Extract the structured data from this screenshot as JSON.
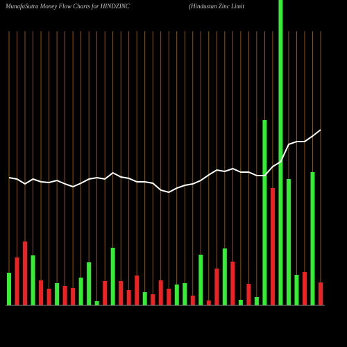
{
  "chart_data": {
    "type": "bar",
    "title": "MunafaSutra  Money Flow  Charts for HINDZINC",
    "subtitle": "(Hindustan  Zinc Limit",
    "ylim": [
      0,
      440
    ],
    "series": [
      {
        "name": "Money Flow",
        "type": "bar",
        "values": [
          47,
          69,
          92,
          72,
          36,
          24,
          32,
          28,
          25,
          40,
          62,
          6,
          35,
          83,
          35,
          22,
          43,
          19,
          16,
          36,
          24,
          30,
          32,
          14,
          73,
          7,
          53,
          82,
          63,
          8,
          31,
          12,
          267,
          169,
          440,
          182,
          44,
          48,
          192,
          33
        ],
        "colors": [
          "#33ee33",
          "#ee2222",
          "#ee2222",
          "#33ee33",
          "#ee2222",
          "#ee2222",
          "#33ee33",
          "#ee2222",
          "#ee2222",
          "#33ee33",
          "#33ee33",
          "#33ee33",
          "#ee2222",
          "#33ee33",
          "#ee2222",
          "#ee2222",
          "#ee2222",
          "#33ee33",
          "#ee2222",
          "#ee2222",
          "#ee2222",
          "#33ee33",
          "#33ee33",
          "#ee2222",
          "#33ee33",
          "#ee2222",
          "#ee2222",
          "#33ee33",
          "#ee2222",
          "#33ee33",
          "#ee2222",
          "#33ee33",
          "#33ee33",
          "#ee2222",
          "#33ee33",
          "#33ee33",
          "#33ee33",
          "#ee2222",
          "#33ee33",
          "#ee2222"
        ]
      },
      {
        "name": "Price",
        "type": "line",
        "color": "#ffffff",
        "values": [
          184,
          182,
          175,
          182,
          178,
          177,
          180,
          175,
          171,
          176,
          182,
          184,
          182,
          191,
          185,
          183,
          178,
          178,
          176,
          166,
          163,
          169,
          173,
          175,
          180,
          188,
          195,
          193,
          197,
          192,
          192,
          187,
          187,
          200,
          207,
          232,
          236,
          236,
          244,
          253
        ]
      }
    ]
  }
}
